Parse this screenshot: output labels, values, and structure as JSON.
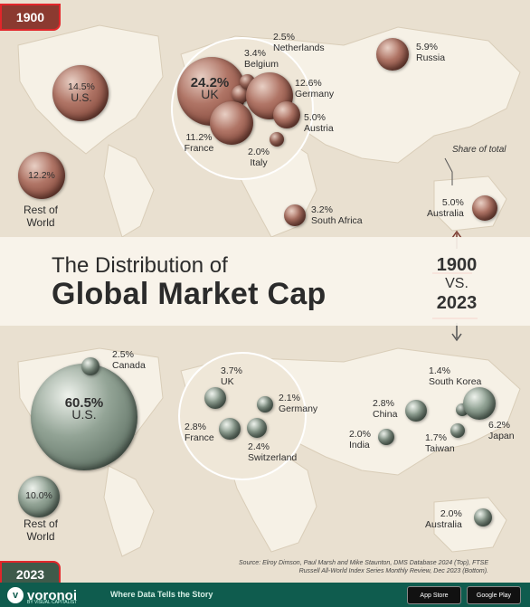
{
  "title": {
    "line1": "The Distribution of",
    "line2": "Global Market Cap",
    "year_a": "1900",
    "vs": "VS.",
    "year_b": "2023"
  },
  "badges": {
    "top": "1900",
    "bottom": "2023"
  },
  "note": "Share of total",
  "map_1900": [
    {
      "pct": "14.5%",
      "name": "U.S."
    },
    {
      "pct": "24.2%",
      "name": "UK"
    },
    {
      "pct": "3.4%",
      "name": "Belgium"
    },
    {
      "pct": "2.5%",
      "name": "Netherlands"
    },
    {
      "pct": "12.6%",
      "name": "Germany"
    },
    {
      "pct": "5.0%",
      "name": "Austria"
    },
    {
      "pct": "11.2%",
      "name": "France"
    },
    {
      "pct": "2.0%",
      "name": "Italy"
    },
    {
      "pct": "5.9%",
      "name": "Russia"
    },
    {
      "pct": "12.2%",
      "name": "Rest of World"
    },
    {
      "pct": "3.2%",
      "name": "South Africa"
    },
    {
      "pct": "5.0%",
      "name": "Australia"
    }
  ],
  "map_2023": [
    {
      "pct": "60.5%",
      "name": "U.S."
    },
    {
      "pct": "2.5%",
      "name": "Canada"
    },
    {
      "pct": "3.7%",
      "name": "UK"
    },
    {
      "pct": "2.1%",
      "name": "Germany"
    },
    {
      "pct": "2.8%",
      "name": "France"
    },
    {
      "pct": "2.4%",
      "name": "Switzerland"
    },
    {
      "pct": "2.8%",
      "name": "China"
    },
    {
      "pct": "1.4%",
      "name": "South Korea"
    },
    {
      "pct": "6.2%",
      "name": "Japan"
    },
    {
      "pct": "2.0%",
      "name": "India"
    },
    {
      "pct": "1.7%",
      "name": "Taiwan"
    },
    {
      "pct": "10.0%",
      "name": "Rest of World"
    },
    {
      "pct": "2.0%",
      "name": "Australia"
    }
  ],
  "source": "Source: Elroy Dimson, Paul Marsh and Mike Staunton, DMS Database 2024 (Top), FTSE Russell All-World Index Series Monthly Review, Dec 2023 (Bottom).",
  "footer": {
    "brand": "voronoi",
    "brand_sub": "BY VISUAL CAPITALIST",
    "tagline": "Where Data Tells the Story",
    "app_store": "App Store",
    "google_play": "Google Play"
  },
  "colors": {
    "bubble_1900": "#8b3a30",
    "bubble_2023": "#45584b",
    "footer": "#0f5c4e",
    "underline": "#e2262a"
  }
}
